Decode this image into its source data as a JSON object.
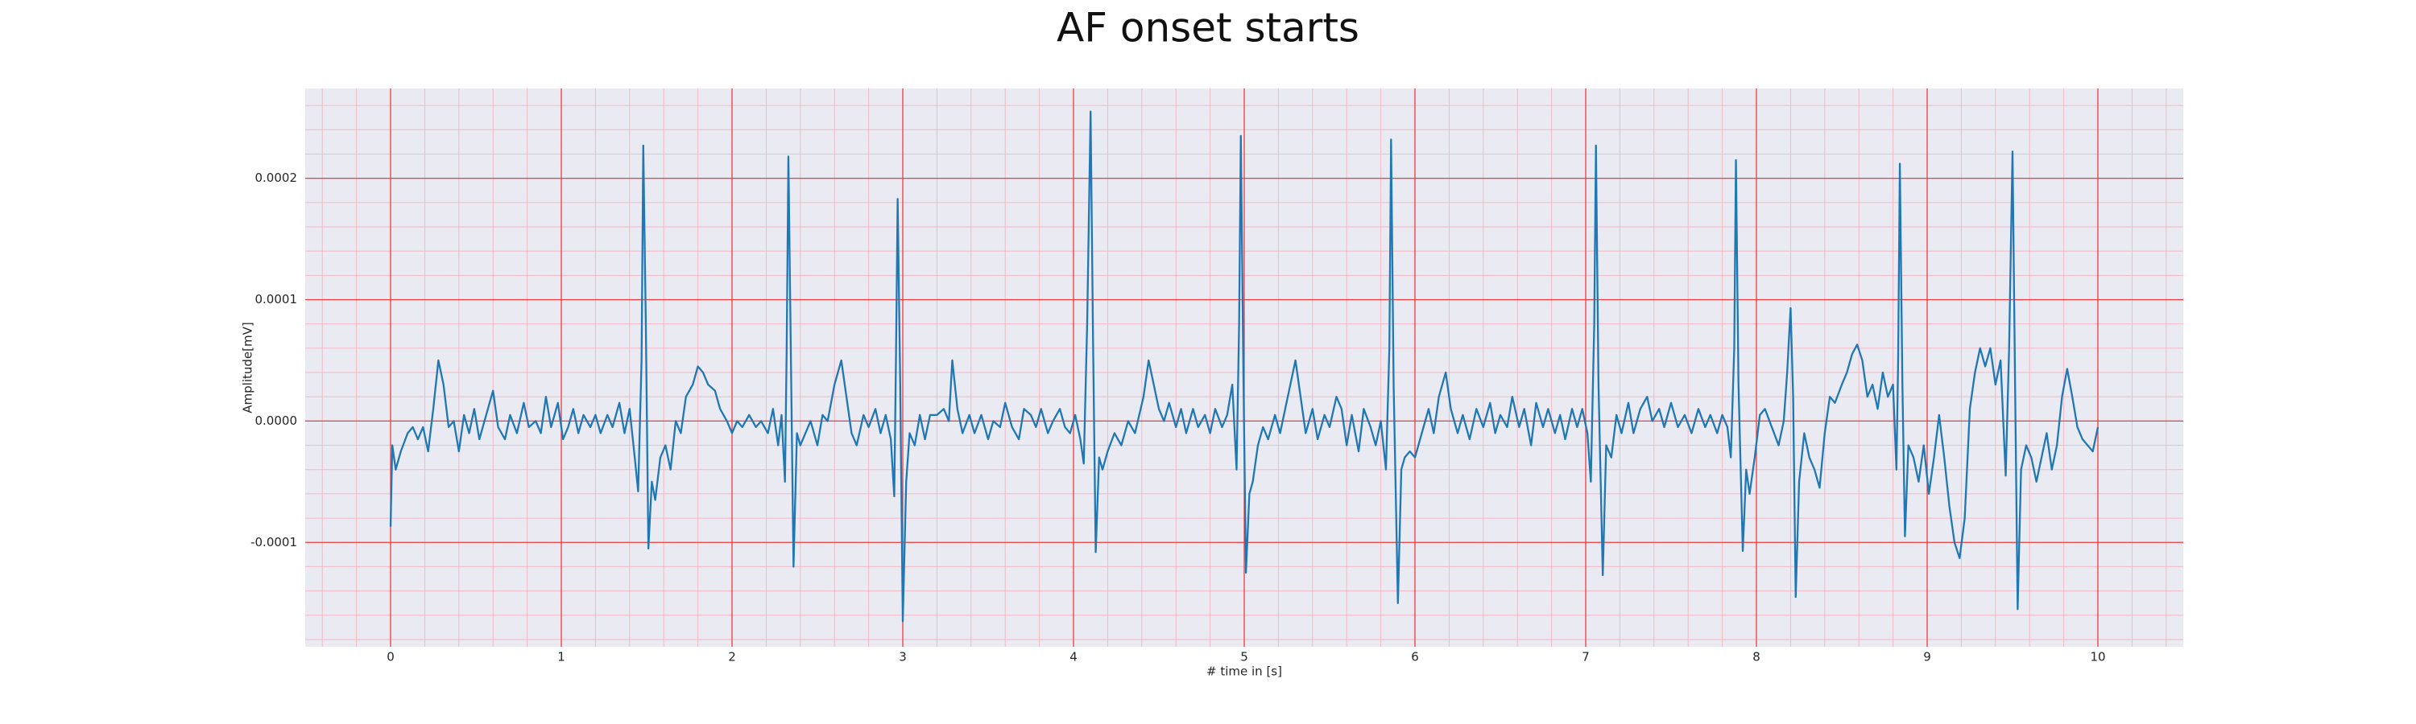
{
  "chart_data": {
    "type": "line",
    "title": "AF onset starts",
    "xlabel": "# time in [s]",
    "ylabel": "Amplitude[mV]",
    "color": "#1f77b4",
    "grid": true,
    "minor_grid": true,
    "xlim": [
      -0.5,
      10.5
    ],
    "xticks": [
      0,
      1,
      2,
      3,
      4,
      5,
      6,
      7,
      8,
      9,
      10
    ],
    "ylim": [
      -0.000186,
      0.000274
    ],
    "yticks": [
      {
        "value": -0.0001,
        "label": "-0.0001"
      },
      {
        "value": 0,
        "label": "0.0000"
      },
      {
        "value": 0.0001,
        "label": "0.0001"
      },
      {
        "value": 0.0002,
        "label": "0.0002"
      }
    ],
    "x": [
      0,
      0.01,
      0.03,
      0.06,
      0.1,
      0.13,
      0.16,
      0.19,
      0.22,
      0.25,
      0.28,
      0.31,
      0.34,
      0.37,
      0.4,
      0.43,
      0.46,
      0.49,
      0.52,
      0.56,
      0.6,
      0.63,
      0.67,
      0.7,
      0.74,
      0.78,
      0.81,
      0.85,
      0.88,
      0.91,
      0.94,
      0.98,
      1.01,
      1.04,
      1.07,
      1.1,
      1.13,
      1.17,
      1.2,
      1.23,
      1.27,
      1.3,
      1.34,
      1.37,
      1.4,
      1.43,
      1.45,
      1.47,
      1.48,
      1.495,
      1.51,
      1.53,
      1.55,
      1.58,
      1.61,
      1.64,
      1.67,
      1.7,
      1.73,
      1.77,
      1.8,
      1.83,
      1.86,
      1.9,
      1.93,
      1.97,
      2.0,
      2.03,
      2.06,
      2.1,
      2.14,
      2.17,
      2.21,
      2.24,
      2.27,
      2.29,
      2.31,
      2.32,
      2.33,
      2.345,
      2.36,
      2.38,
      2.4,
      2.43,
      2.46,
      2.5,
      2.53,
      2.56,
      2.6,
      2.64,
      2.67,
      2.7,
      2.73,
      2.77,
      2.8,
      2.84,
      2.87,
      2.9,
      2.93,
      2.95,
      2.96,
      2.97,
      2.985,
      3.0,
      3.02,
      3.04,
      3.07,
      3.1,
      3.13,
      3.16,
      3.2,
      3.24,
      3.27,
      3.29,
      3.32,
      3.35,
      3.39,
      3.42,
      3.46,
      3.5,
      3.53,
      3.57,
      3.6,
      3.64,
      3.68,
      3.71,
      3.75,
      3.78,
      3.81,
      3.85,
      3.88,
      3.92,
      3.95,
      3.98,
      4.01,
      4.04,
      4.06,
      4.08,
      4.1,
      4.115,
      4.13,
      4.15,
      4.17,
      4.2,
      4.24,
      4.28,
      4.32,
      4.36,
      4.41,
      4.44,
      4.47,
      4.5,
      4.53,
      4.56,
      4.6,
      4.63,
      4.66,
      4.7,
      4.73,
      4.77,
      4.8,
      4.83,
      4.87,
      4.9,
      4.93,
      4.955,
      4.97,
      4.98,
      4.995,
      5.01,
      5.03,
      5.05,
      5.08,
      5.11,
      5.14,
      5.18,
      5.21,
      5.24,
      5.27,
      5.3,
      5.33,
      5.36,
      5.4,
      5.43,
      5.47,
      5.5,
      5.54,
      5.57,
      5.6,
      5.63,
      5.67,
      5.7,
      5.74,
      5.77,
      5.8,
      5.83,
      5.85,
      5.86,
      5.875,
      5.9,
      5.92,
      5.94,
      5.97,
      6.0,
      6.04,
      6.08,
      6.11,
      6.14,
      6.18,
      6.21,
      6.25,
      6.28,
      6.32,
      6.36,
      6.4,
      6.44,
      6.47,
      6.5,
      6.54,
      6.57,
      6.61,
      6.64,
      6.68,
      6.71,
      6.75,
      6.78,
      6.82,
      6.85,
      6.88,
      6.92,
      6.95,
      6.98,
      7.01,
      7.03,
      7.05,
      7.06,
      7.075,
      7.1,
      7.12,
      7.15,
      7.18,
      7.21,
      7.25,
      7.28,
      7.32,
      7.36,
      7.39,
      7.43,
      7.46,
      7.5,
      7.54,
      7.58,
      7.62,
      7.66,
      7.7,
      7.73,
      7.77,
      7.8,
      7.83,
      7.85,
      7.87,
      7.88,
      7.895,
      7.92,
      7.94,
      7.96,
      7.99,
      8.02,
      8.05,
      8.09,
      8.13,
      8.16,
      8.18,
      8.2,
      8.215,
      8.23,
      8.25,
      8.28,
      8.31,
      8.34,
      8.37,
      8.4,
      8.43,
      8.46,
      8.5,
      8.53,
      8.56,
      8.59,
      8.62,
      8.65,
      8.68,
      8.71,
      8.74,
      8.77,
      8.8,
      8.82,
      8.83,
      8.84,
      8.855,
      8.87,
      8.89,
      8.92,
      8.95,
      8.98,
      9.01,
      9.04,
      9.07,
      9.1,
      9.13,
      9.16,
      9.19,
      9.22,
      9.25,
      9.28,
      9.31,
      9.34,
      9.37,
      9.4,
      9.43,
      9.46,
      9.48,
      9.5,
      9.515,
      9.53,
      9.55,
      9.58,
      9.61,
      9.64,
      9.67,
      9.7,
      9.73,
      9.76,
      9.79,
      9.82,
      9.85,
      9.88,
      9.91,
      9.94,
      9.97,
      10.0
    ],
    "values": [
      -8.7e-05,
      -2e-05,
      -4e-05,
      -2.5e-05,
      -1e-05,
      -5e-06,
      -1.5e-05,
      -5e-06,
      -2.5e-05,
      1e-05,
      5e-05,
      3e-05,
      -5e-06,
      0,
      -2.5e-05,
      5e-06,
      -1e-05,
      1e-05,
      -1.5e-05,
      5e-06,
      2.5e-05,
      -5e-06,
      -1.5e-05,
      5e-06,
      -1e-05,
      1.5e-05,
      -5e-06,
      0,
      -1e-05,
      2e-05,
      -5e-06,
      1.5e-05,
      -1.5e-05,
      -5e-06,
      1e-05,
      -1e-05,
      5e-06,
      -5e-06,
      5e-06,
      -1e-05,
      5e-06,
      -5e-06,
      1.5e-05,
      -1e-05,
      1e-05,
      -3e-05,
      -5.8e-05,
      5e-05,
      0.000227,
      8e-05,
      -0.000105,
      -5e-05,
      -6.5e-05,
      -3e-05,
      -2e-05,
      -4e-05,
      0,
      -1e-05,
      2e-05,
      3e-05,
      4.5e-05,
      4e-05,
      3e-05,
      2.5e-05,
      1e-05,
      0,
      -1e-05,
      0,
      -5e-06,
      5e-06,
      -5e-06,
      0,
      -1e-05,
      1e-05,
      -2e-05,
      5e-06,
      -5e-05,
      6e-05,
      0.000218,
      5e-05,
      -0.00012,
      -1e-05,
      -2e-05,
      -1e-05,
      0,
      -2e-05,
      5e-06,
      0,
      3e-05,
      5e-05,
      2e-05,
      -1e-05,
      -2e-05,
      5e-06,
      -5e-06,
      1e-05,
      -1e-05,
      5e-06,
      -1.5e-05,
      -6.2e-05,
      5e-05,
      0.000183,
      3e-05,
      -0.000165,
      -5e-05,
      -1e-05,
      -2e-05,
      5e-06,
      -1.5e-05,
      5e-06,
      5e-06,
      1e-05,
      0,
      5e-05,
      1e-05,
      -1e-05,
      5e-06,
      -1e-05,
      5e-06,
      -1.5e-05,
      0,
      -5e-06,
      1.5e-05,
      -5e-06,
      -1.5e-05,
      1e-05,
      5e-06,
      -5e-06,
      1e-05,
      -1e-05,
      0,
      1e-05,
      -5e-06,
      -1e-05,
      5e-06,
      -1.5e-05,
      -3.5e-05,
      8e-05,
      0.000255,
      6e-05,
      -0.000108,
      -3e-05,
      -4e-05,
      -2.5e-05,
      -1e-05,
      -2e-05,
      0,
      -1e-05,
      2e-05,
      5e-05,
      3e-05,
      1e-05,
      0,
      1.5e-05,
      -5e-06,
      1e-05,
      -1e-05,
      1e-05,
      -5e-06,
      5e-06,
      -1e-05,
      1e-05,
      -5e-06,
      5e-06,
      3e-05,
      -4e-05,
      8e-05,
      0.000235,
      4e-05,
      -0.000125,
      -6e-05,
      -5e-05,
      -2e-05,
      -5e-06,
      -1.5e-05,
      5e-06,
      -1e-05,
      1e-05,
      3e-05,
      5e-05,
      2e-05,
      -1e-05,
      1e-05,
      -1.5e-05,
      5e-06,
      -5e-06,
      2e-05,
      1e-05,
      -2e-05,
      5e-06,
      -2.5e-05,
      1e-05,
      -5e-06,
      -2e-05,
      0,
      -4e-05,
      6e-05,
      0.000232,
      3e-05,
      -0.00015,
      -4e-05,
      -3e-05,
      -2.5e-05,
      -3e-05,
      -1e-05,
      1e-05,
      -1e-05,
      2e-05,
      4e-05,
      1e-05,
      -1e-05,
      5e-06,
      -1.5e-05,
      1e-05,
      -5e-06,
      1.5e-05,
      -1e-05,
      5e-06,
      -5e-06,
      2e-05,
      -5e-06,
      1e-05,
      -2e-05,
      1.5e-05,
      -5e-06,
      1e-05,
      -1e-05,
      5e-06,
      -1.5e-05,
      1e-05,
      -5e-06,
      1e-05,
      -1e-05,
      -5e-05,
      8e-05,
      0.000227,
      3e-05,
      -0.000127,
      -2e-05,
      -3e-05,
      5e-06,
      -1e-05,
      1.5e-05,
      -1e-05,
      1e-05,
      2e-05,
      0,
      1e-05,
      -5e-06,
      1.5e-05,
      -5e-06,
      5e-06,
      -1e-05,
      1e-05,
      -5e-06,
      5e-06,
      -1e-05,
      5e-06,
      -5e-06,
      -3e-05,
      6e-05,
      0.000215,
      3e-05,
      -0.000107,
      -4e-05,
      -6e-05,
      -3e-05,
      5e-06,
      1e-05,
      -5e-06,
      -2e-05,
      0,
      4e-05,
      9.3e-05,
      2e-05,
      -0.000145,
      -5e-05,
      -1e-05,
      -3e-05,
      -4e-05,
      -5.5e-05,
      -1e-05,
      2e-05,
      1.5e-05,
      3e-05,
      4e-05,
      5.5e-05,
      6.3e-05,
      5e-05,
      2e-05,
      3e-05,
      1e-05,
      4e-05,
      2e-05,
      3e-05,
      -4e-05,
      5e-05,
      0.000212,
      3e-05,
      -9.5e-05,
      -2e-05,
      -3e-05,
      -5e-05,
      -2e-05,
      -6e-05,
      -3e-05,
      5e-06,
      -3e-05,
      -7e-05,
      -0.0001,
      -0.000113,
      -8e-05,
      1e-05,
      4e-05,
      6e-05,
      4.5e-05,
      6e-05,
      3e-05,
      5e-05,
      -4.5e-05,
      6e-05,
      0.000222,
      3e-05,
      -0.000155,
      -4e-05,
      -2e-05,
      -3e-05,
      -5e-05,
      -3e-05,
      -1e-05,
      -4e-05,
      -2e-05,
      2e-05,
      4.3e-05,
      2e-05,
      -5e-06,
      -1.5e-05,
      -2e-05,
      -2.5e-05,
      -5e-06
    ]
  }
}
